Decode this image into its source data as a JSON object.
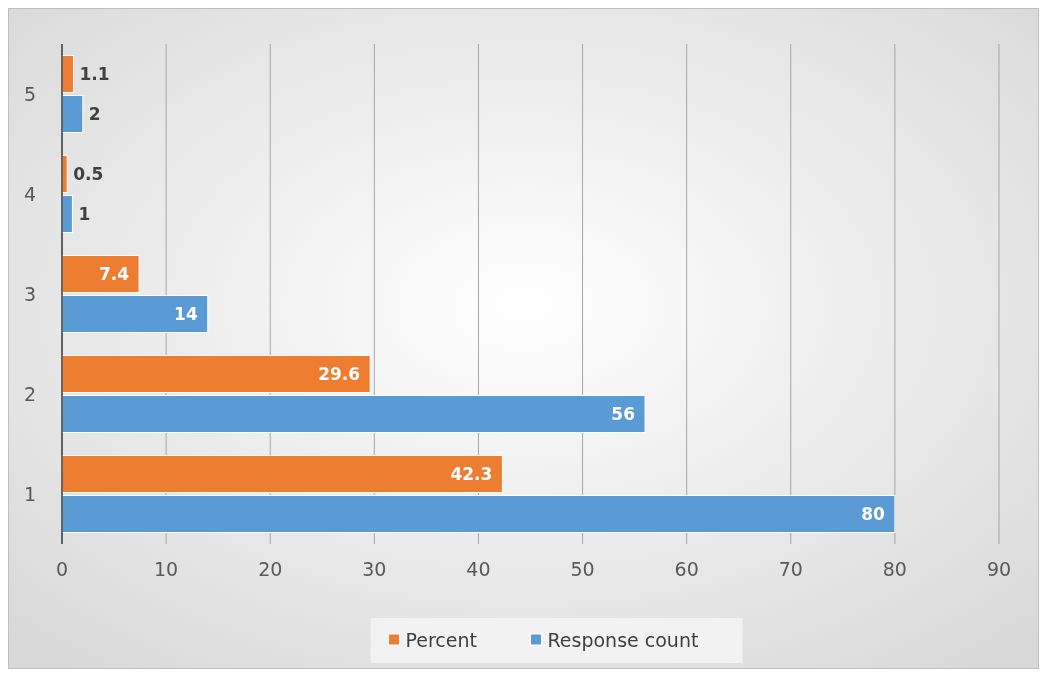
{
  "chart_data": {
    "type": "bar",
    "orientation": "horizontal",
    "categories": [
      "5",
      "4",
      "3",
      "2",
      "1"
    ],
    "series": [
      {
        "name": "Percent",
        "color": "#ed7d31",
        "values": [
          1.1,
          0.5,
          7.4,
          29.6,
          42.3
        ]
      },
      {
        "name": "Response count",
        "color": "#5b9bd5",
        "values": [
          2,
          1,
          14,
          56,
          80
        ]
      }
    ],
    "xlim": [
      0,
      90
    ],
    "xticks": [
      0,
      10,
      20,
      30,
      40,
      50,
      60,
      70,
      80,
      90
    ],
    "grid": "x",
    "data_labels": true,
    "legend": "bottom"
  }
}
